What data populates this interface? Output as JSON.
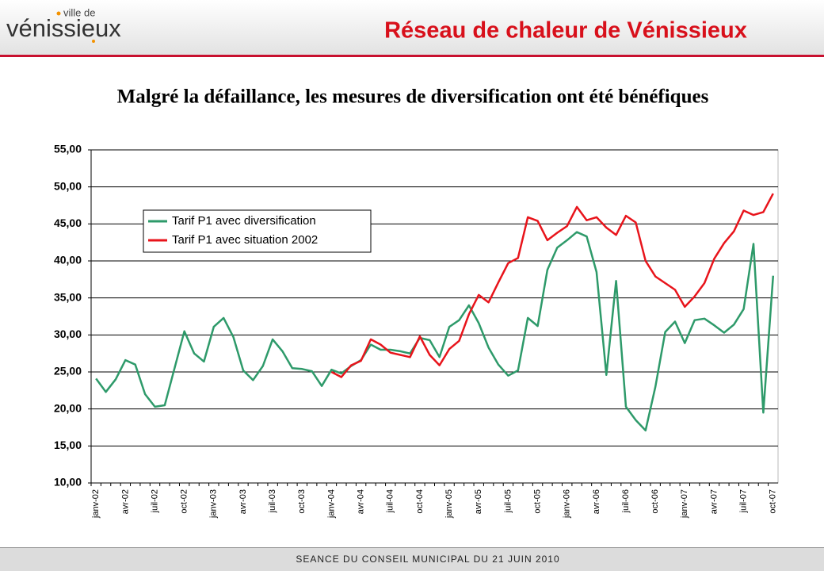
{
  "header": {
    "logo_small": "ville de",
    "logo": "vénissieux",
    "title": "Réseau de chaleur de Vénissieux"
  },
  "footer": "SEANCE DU CONSEIL MUNICIPAL DU 21 JUIN 2010",
  "chart_data": {
    "type": "line",
    "title": "Malgré la défaillance, les mesures de diversification ont été bénéfiques",
    "categories": [
      "janv-02",
      null,
      null,
      "avr-02",
      null,
      null,
      "juil-02",
      null,
      null,
      "oct-02",
      null,
      null,
      "janv-03",
      null,
      null,
      "avr-03",
      null,
      null,
      "juil-03",
      null,
      null,
      "oct-03",
      null,
      null,
      "janv-04",
      null,
      null,
      "avr-04",
      null,
      null,
      "juil-04",
      null,
      null,
      "oct-04",
      null,
      null,
      "janv-05",
      null,
      null,
      "avr-05",
      null,
      null,
      "juil-05",
      null,
      null,
      "oct-05",
      null,
      null,
      "janv-06",
      null,
      null,
      "avr-06",
      null,
      null,
      "juil-06",
      null,
      null,
      "oct-06",
      null,
      null,
      "janv-07",
      null,
      null,
      "avr-07",
      null,
      null,
      "juil-07",
      null,
      null,
      "oct-07"
    ],
    "series": [
      {
        "name": "Tarif P1 avec diversification",
        "color": "#2e9a6a",
        "values": [
          24.1,
          22.3,
          24.0,
          26.6,
          26.0,
          22.0,
          20.3,
          20.5,
          25.5,
          30.5,
          27.5,
          26.4,
          31.1,
          32.3,
          29.7,
          25.2,
          23.9,
          25.8,
          29.4,
          27.8,
          25.5,
          25.4,
          25.1,
          23.1,
          25.3,
          24.8,
          25.8,
          26.6,
          28.7,
          28.0,
          28.0,
          27.8,
          27.5,
          29.6,
          29.3,
          27.0,
          31.1,
          32.0,
          34.0,
          31.6,
          28.3,
          26.0,
          24.5,
          25.2,
          32.3,
          31.2,
          38.8,
          41.8,
          42.8,
          43.9,
          43.3,
          38.5,
          24.6,
          37.3,
          20.3,
          18.5,
          17.1,
          23.0,
          30.4,
          31.8,
          28.9,
          32.0,
          32.2,
          31.3,
          30.3,
          31.4,
          33.5,
          42.3,
          19.5,
          38.0
        ]
      },
      {
        "name": "Tarif P1 avec situation 2002",
        "color": "#e8141b",
        "values": [
          null,
          null,
          null,
          null,
          null,
          null,
          null,
          null,
          null,
          null,
          null,
          null,
          null,
          null,
          null,
          null,
          null,
          null,
          null,
          null,
          null,
          null,
          null,
          null,
          25.0,
          24.3,
          25.9,
          26.5,
          29.4,
          28.7,
          27.6,
          27.3,
          27.0,
          29.8,
          27.3,
          25.9,
          28.1,
          29.2,
          32.8,
          35.4,
          34.4,
          37.1,
          39.7,
          40.4,
          45.9,
          45.4,
          42.8,
          43.8,
          44.7,
          47.3,
          45.5,
          45.9,
          44.5,
          43.5,
          46.1,
          45.2,
          40.0,
          37.9,
          37.0,
          36.1,
          33.8,
          35.2,
          37.0,
          40.3,
          42.4,
          44.0,
          46.8,
          46.2,
          46.6,
          49.1
        ]
      }
    ],
    "ylim": [
      10,
      55
    ],
    "yticks": [
      {
        "value": 10,
        "label": "10,00"
      },
      {
        "value": 15,
        "label": "15,00"
      },
      {
        "value": 20,
        "label": "20,00"
      },
      {
        "value": 25,
        "label": "25,00"
      },
      {
        "value": 30,
        "label": "30,00"
      },
      {
        "value": 35,
        "label": "35,00"
      },
      {
        "value": 40,
        "label": "40,00"
      },
      {
        "value": 45,
        "label": "45,00"
      },
      {
        "value": 50,
        "label": "50,00"
      },
      {
        "value": 55,
        "label": "55,00"
      }
    ],
    "grid": true,
    "legend": "upper left"
  }
}
